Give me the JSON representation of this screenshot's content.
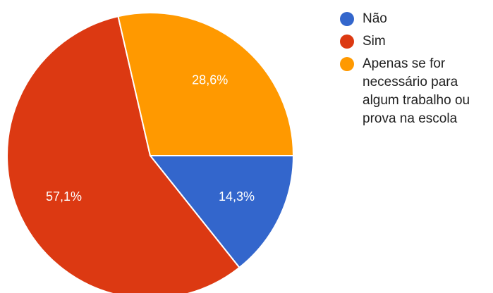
{
  "chart_data": {
    "type": "pie",
    "start_angle_deg": 0,
    "direction": "clockwise",
    "legend_position": "right",
    "slices": [
      {
        "label": "Não",
        "value": 14.3,
        "display": "14,3%",
        "color": "#3366cc"
      },
      {
        "label": "Sim",
        "value": 57.1,
        "display": "57,1%",
        "color": "#dc3912"
      },
      {
        "label": "Apenas se for necessário para algum trabalho ou prova na escola",
        "value": 28.6,
        "display": "28,6%",
        "color": "#ff9900"
      }
    ]
  }
}
